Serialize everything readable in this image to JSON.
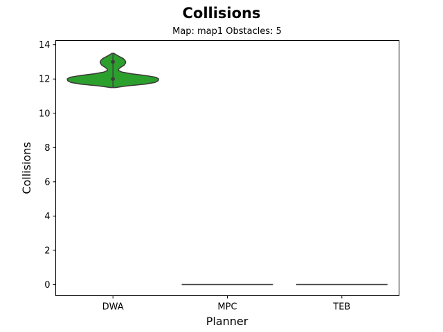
{
  "chart_data": {
    "type": "violin",
    "title": "Collisions",
    "subtitle": "Map: map1 Obstacles: 5",
    "xlabel": "Planner",
    "ylabel": "Collisions",
    "categories": [
      "DWA",
      "MPC",
      "TEB"
    ],
    "ylim": [
      -0.65,
      14.25
    ],
    "yticks": [
      0,
      2,
      4,
      6,
      8,
      10,
      12,
      14
    ],
    "grid": false,
    "violin_color": "#2ca02c",
    "edge_color": "#3d3d3d",
    "series": [
      {
        "category": "DWA",
        "range": [
          11.5,
          13.5
        ],
        "points": [
          12,
          13
        ],
        "profile": [
          [
            11.5,
            0.05
          ],
          [
            11.6,
            0.32
          ],
          [
            11.7,
            0.7
          ],
          [
            11.8,
            0.92
          ],
          [
            11.9,
            0.99
          ],
          [
            12.0,
            1.0
          ],
          [
            12.1,
            0.94
          ],
          [
            12.2,
            0.72
          ],
          [
            12.3,
            0.42
          ],
          [
            12.4,
            0.2
          ],
          [
            12.5,
            0.12
          ],
          [
            12.6,
            0.13
          ],
          [
            12.7,
            0.18
          ],
          [
            12.8,
            0.24
          ],
          [
            12.9,
            0.27
          ],
          [
            13.0,
            0.28
          ],
          [
            13.1,
            0.26
          ],
          [
            13.2,
            0.22
          ],
          [
            13.3,
            0.15
          ],
          [
            13.4,
            0.08
          ],
          [
            13.5,
            0.02
          ]
        ]
      },
      {
        "category": "MPC",
        "flat_value": 0
      },
      {
        "category": "TEB",
        "flat_value": 0
      }
    ]
  }
}
